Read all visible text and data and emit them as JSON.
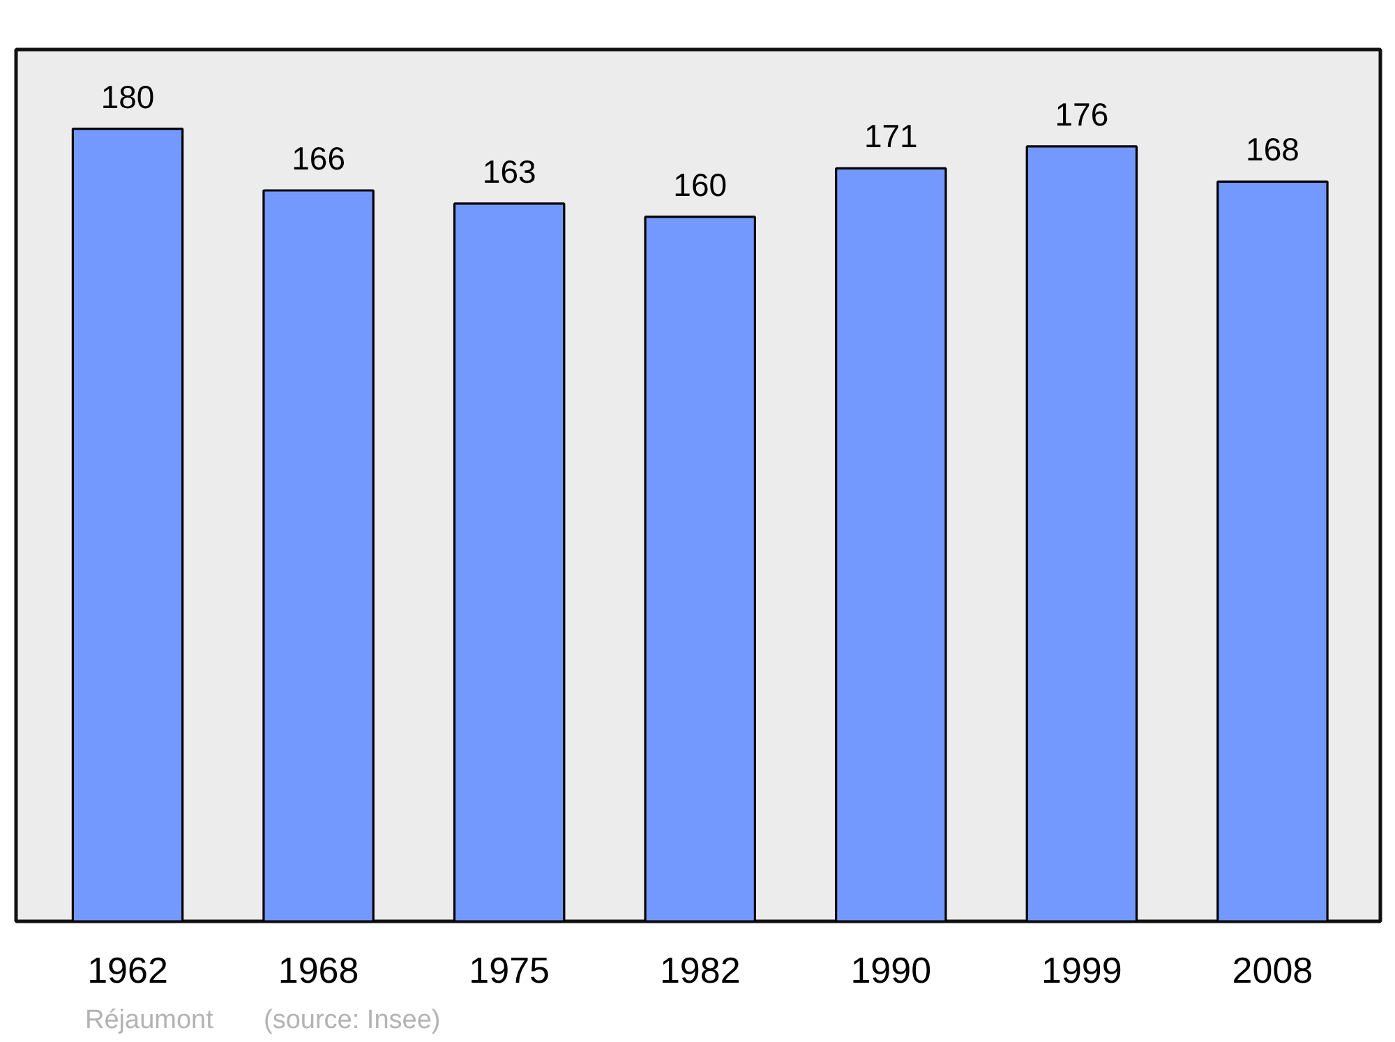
{
  "chart_data": {
    "type": "bar",
    "categories": [
      "1962",
      "1968",
      "1975",
      "1982",
      "1990",
      "1999",
      "2008"
    ],
    "values": [
      180,
      166,
      163,
      160,
      171,
      176,
      168
    ],
    "color": "#7399ff",
    "data_labels": true,
    "tick_labels": "x",
    "annotations": [
      "Réjaumont",
      "(source: Insee)"
    ]
  }
}
